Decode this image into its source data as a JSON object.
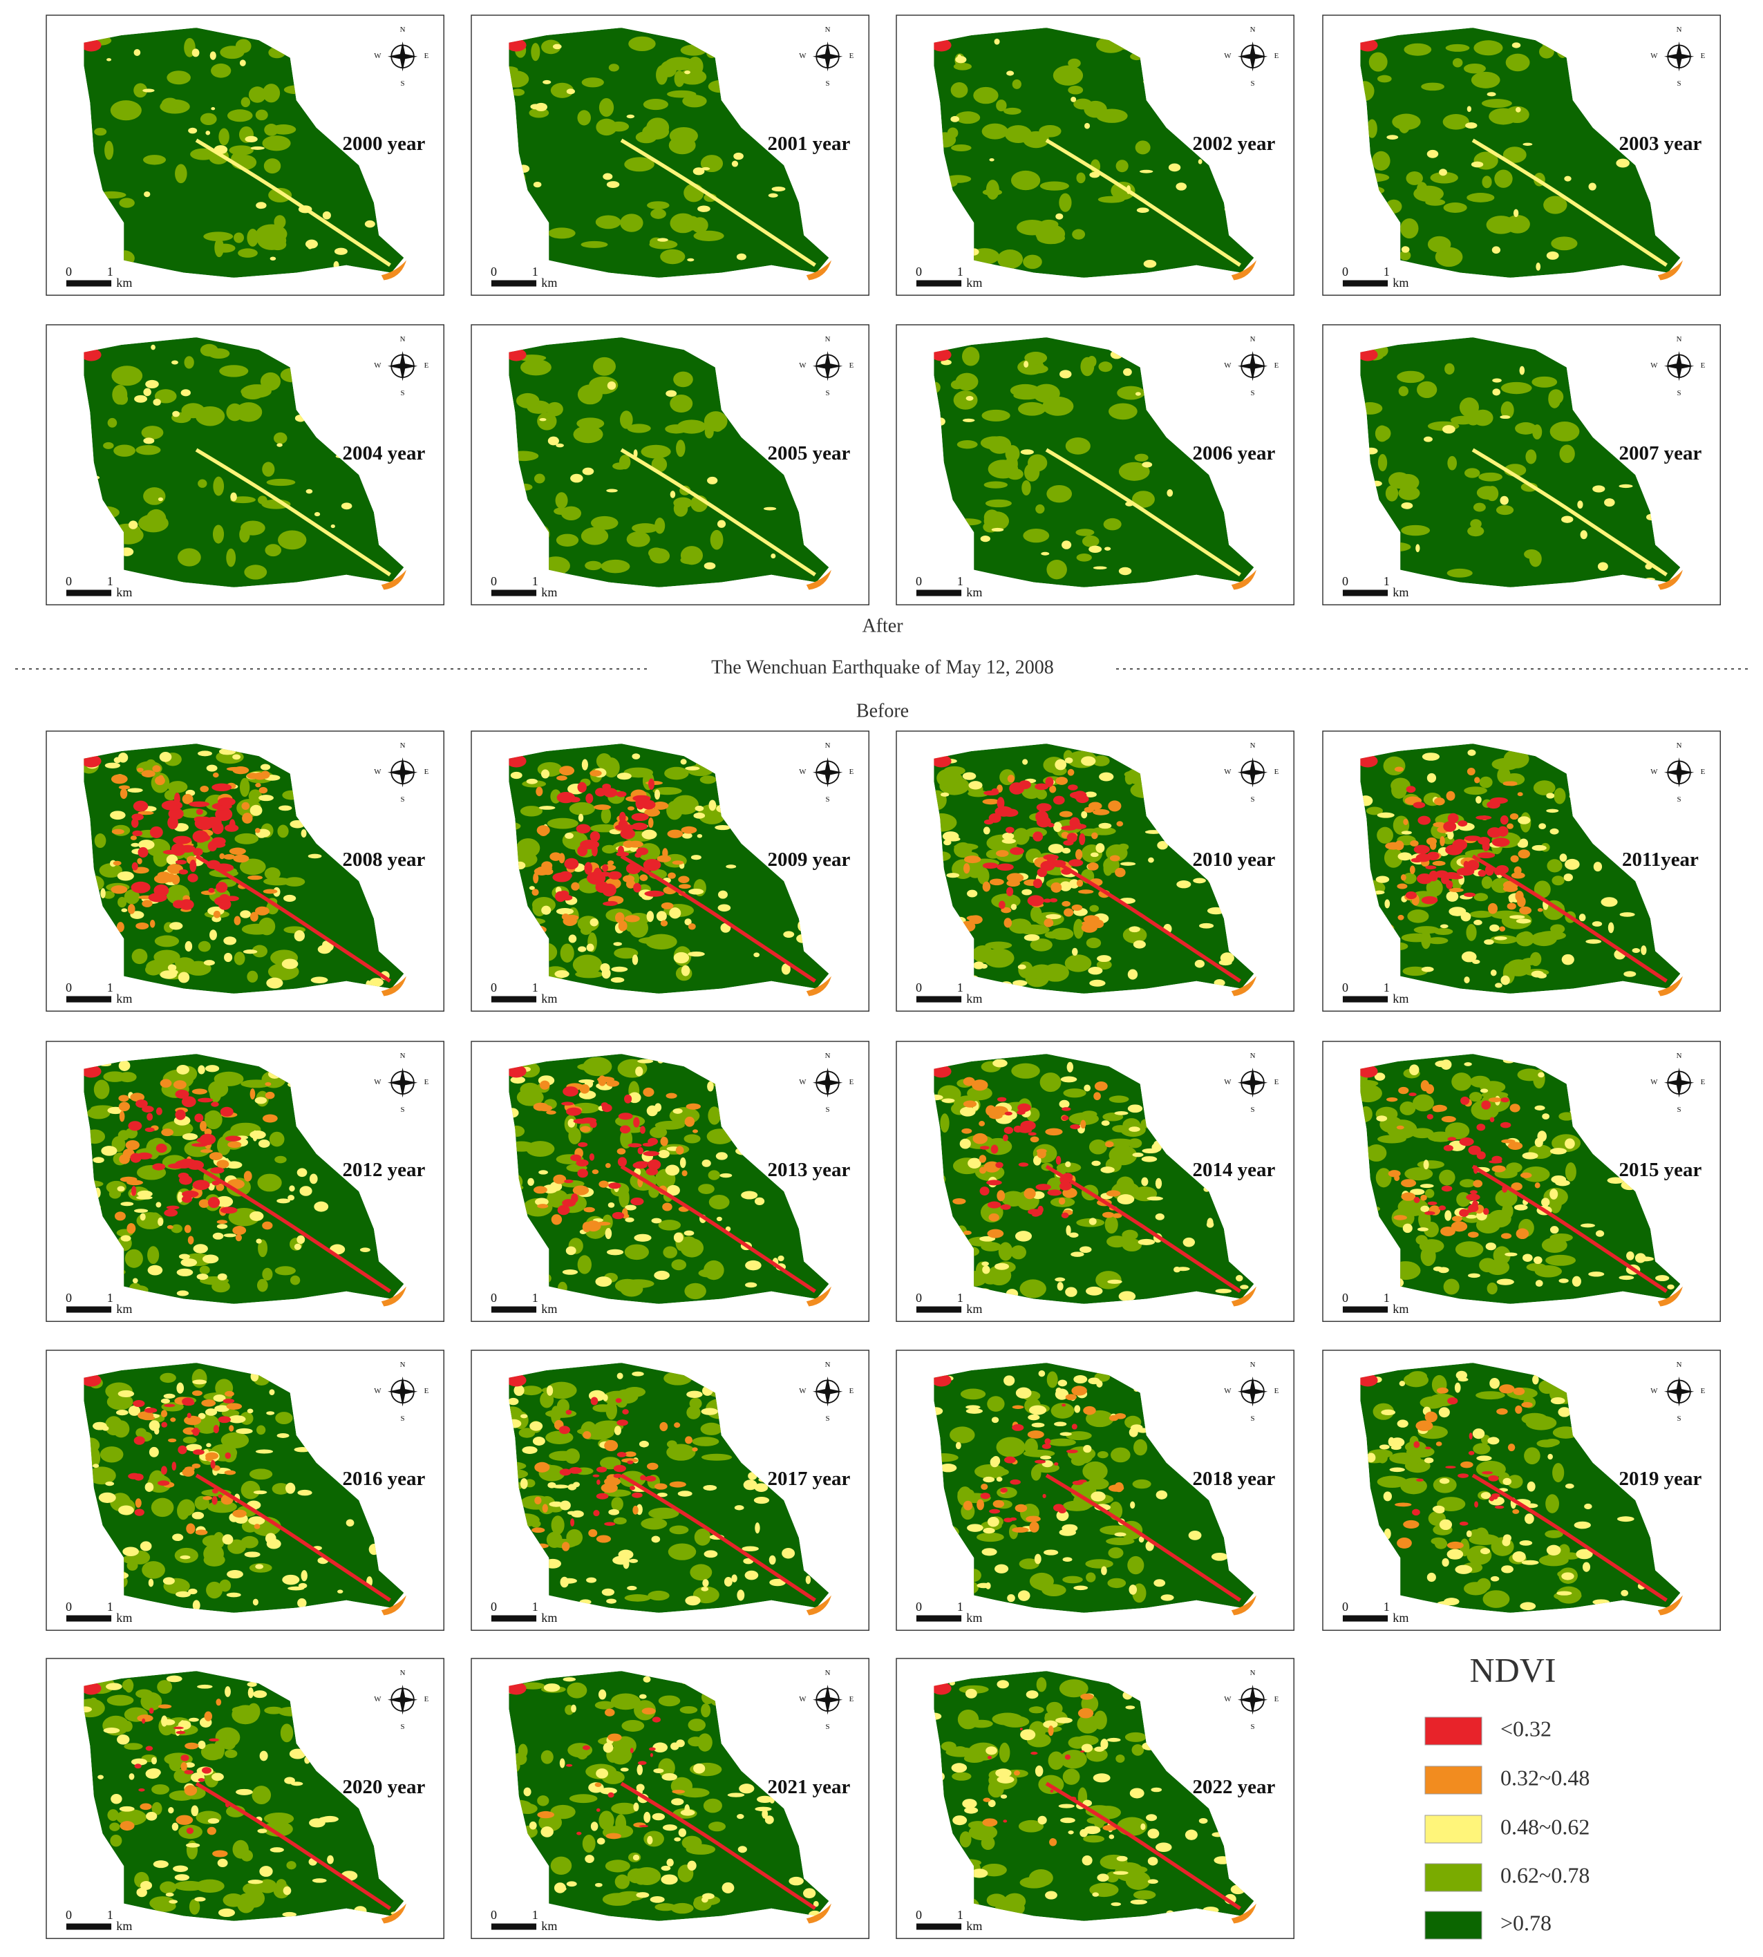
{
  "panels": [
    {
      "label": "2000 year"
    },
    {
      "label": "2001 year"
    },
    {
      "label": "2002 year"
    },
    {
      "label": "2003 year"
    },
    {
      "label": "2004 year"
    },
    {
      "label": "2005 year"
    },
    {
      "label": "2006 year"
    },
    {
      "label": "2007 year"
    },
    {
      "label": "2008 year"
    },
    {
      "label": "2009 year"
    },
    {
      "label": "2010 year"
    },
    {
      "label": "2011year"
    },
    {
      "label": "2012 year"
    },
    {
      "label": "2013 year"
    },
    {
      "label": "2014 year"
    },
    {
      "label": "2015 year"
    },
    {
      "label": "2016 year"
    },
    {
      "label": "2017 year"
    },
    {
      "label": "2018 year"
    },
    {
      "label": "2019 year"
    },
    {
      "label": "2020 year"
    },
    {
      "label": "2021 year"
    },
    {
      "label": "2022 year"
    }
  ],
  "compass": {
    "n": "N",
    "e": "E",
    "s": "S",
    "w": "W"
  },
  "scale_bar": {
    "zero": "0",
    "one": "1",
    "unit": "km"
  },
  "divider": {
    "above": "After",
    "text": "The Wenchuan Earthquake of May 12, 2008",
    "below": "Before"
  },
  "legend": {
    "title": "NDVI",
    "items": [
      {
        "label": "<0.32",
        "color": "#e8232a"
      },
      {
        "label": "0.32~0.48",
        "color": "#f28c1f"
      },
      {
        "label": "0.48~0.62",
        "color": "#fff57a"
      },
      {
        "label": "0.62~0.78",
        "color": "#7aab00"
      },
      {
        "label": ">0.78",
        "color": "#0b6600"
      }
    ]
  }
}
